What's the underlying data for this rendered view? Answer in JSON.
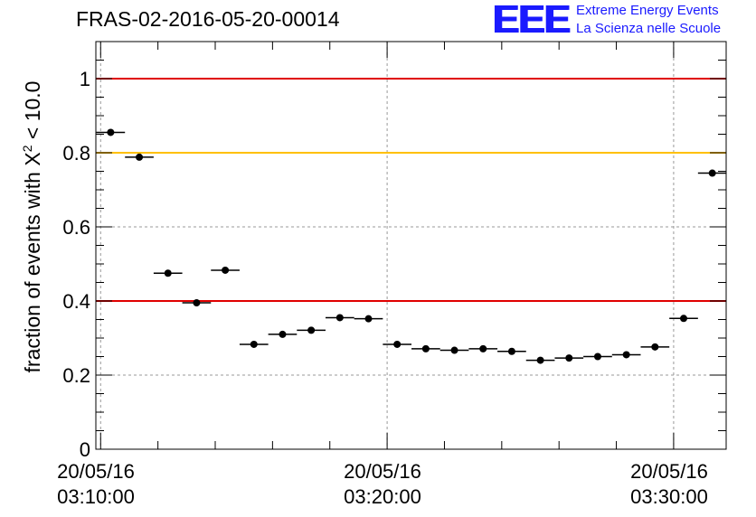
{
  "title": "FRAS-02-2016-05-20-00014",
  "logo": {
    "mark": "EEE",
    "line1": "Extreme Energy Events",
    "line2": "La Scienza nelle Scuole",
    "color": "#1a1aff"
  },
  "ylabel": {
    "prefix": "fraction of events with ",
    "symbol": "X",
    "sup": "2",
    "suffix": " < 10.0"
  },
  "xticks": [
    {
      "date": "20/05/16",
      "time": "03:10:00"
    },
    {
      "date": "20/05/16",
      "time": "03:20:00"
    },
    {
      "date": "20/05/16",
      "time": "03:30:00"
    }
  ],
  "chart_data": {
    "type": "scatter",
    "title": "FRAS-02-2016-05-20-00014",
    "ylabel": "fraction of events with X^2 < 10.0",
    "xlim": [
      "03:09:50",
      "03:31:50"
    ],
    "ylim": [
      0,
      1.1
    ],
    "yticks": [
      0,
      0.2,
      0.4,
      0.6,
      0.8,
      1
    ],
    "ytick_labels": [
      "0",
      "0.2",
      "0.4",
      "0.6",
      "0.8",
      "1"
    ],
    "grid": true,
    "bin_width_seconds": 60,
    "x": [
      "03:10:21",
      "03:11:21",
      "03:12:21",
      "03:13:21",
      "03:14:21",
      "03:15:21",
      "03:16:21",
      "03:17:21",
      "03:18:21",
      "03:19:21",
      "03:20:21",
      "03:21:21",
      "03:22:21",
      "03:23:21",
      "03:24:21",
      "03:25:21",
      "03:26:21",
      "03:27:21",
      "03:28:21",
      "03:29:21",
      "03:30:21",
      "03:31:21"
    ],
    "y": [
      0.855,
      0.788,
      0.475,
      0.395,
      0.483,
      0.283,
      0.31,
      0.321,
      0.355,
      0.352,
      0.283,
      0.271,
      0.267,
      0.271,
      0.264,
      0.24,
      0.246,
      0.25,
      0.255,
      0.276,
      0.353,
      0.745
    ],
    "reference_lines": [
      {
        "y": 1.0,
        "color": "#e00000"
      },
      {
        "y": 0.8,
        "color": "#ffc000"
      },
      {
        "y": 0.4,
        "color": "#e00000"
      }
    ]
  }
}
